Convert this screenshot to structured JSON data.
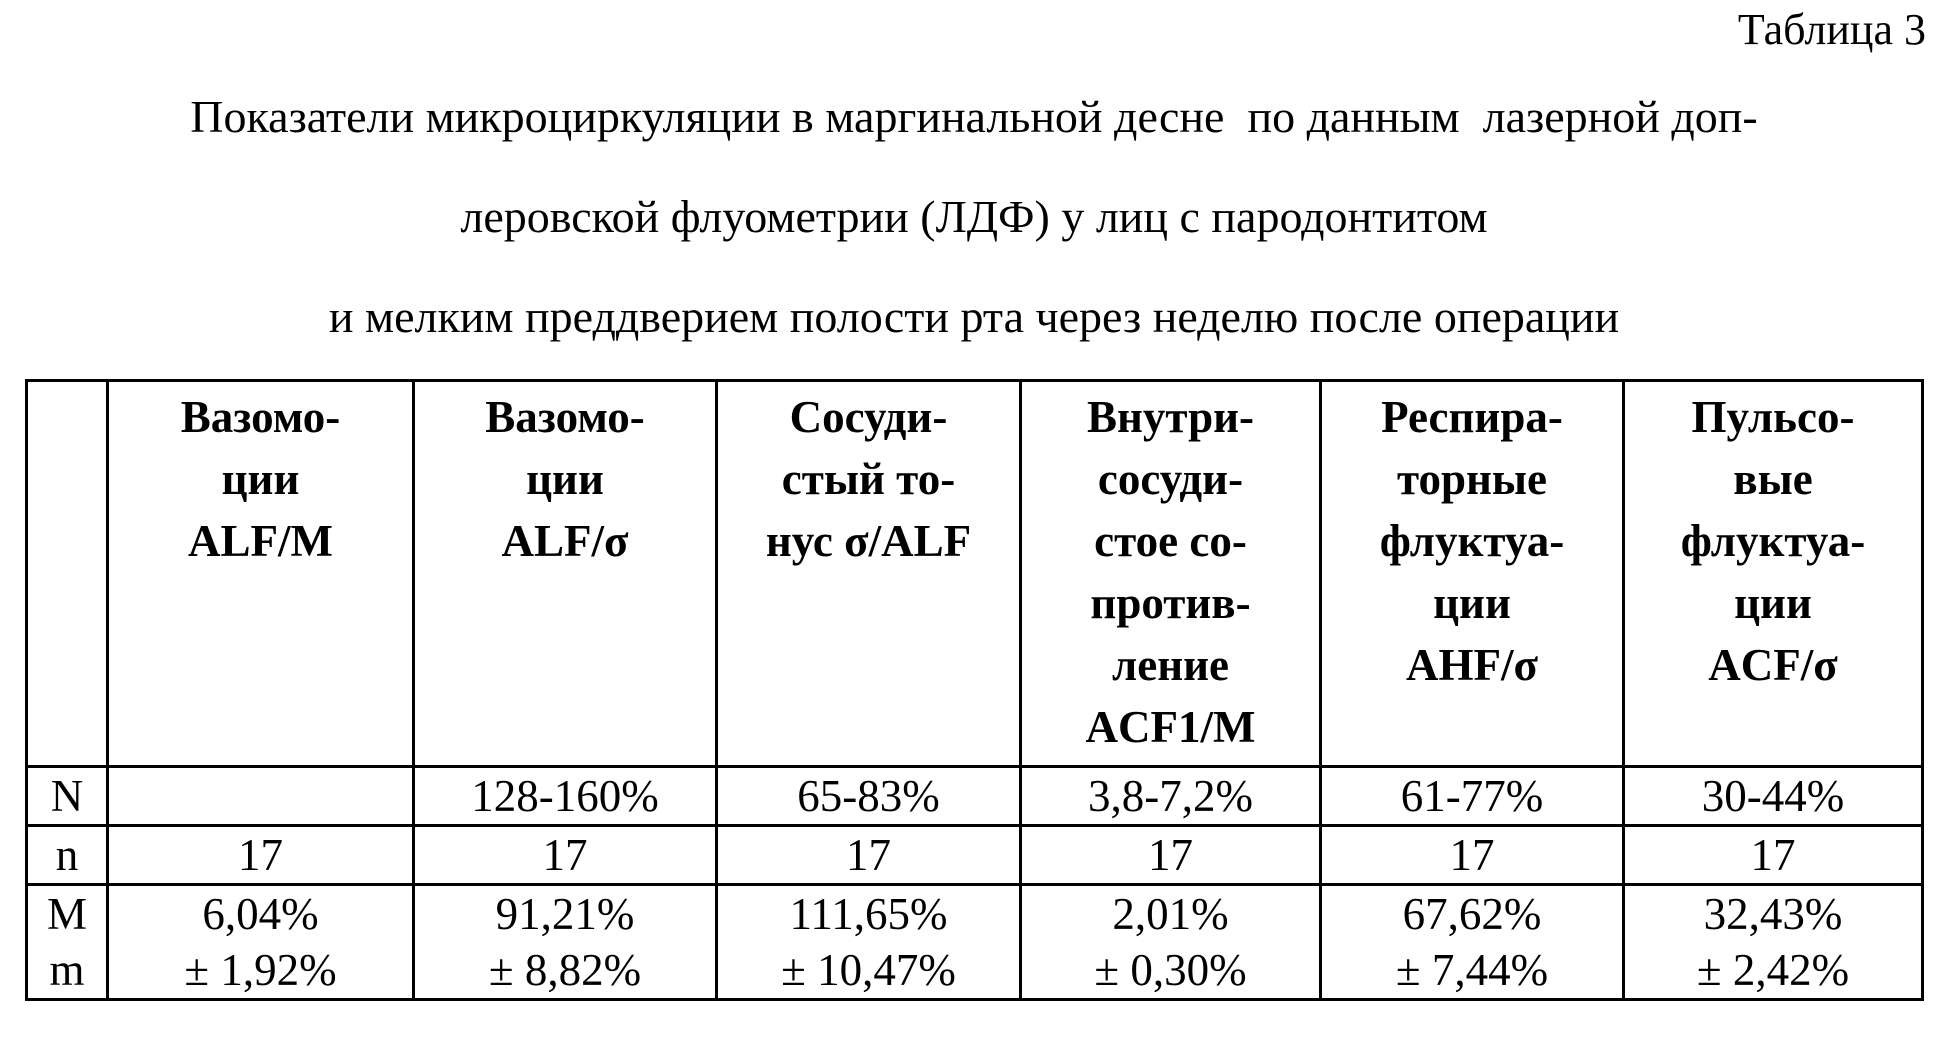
{
  "caption": "Таблица 3",
  "title": [
    "Показатели микроциркуляции в маргинальной десне  по данным  лазерной доп-",
    "леровской флуометрии (ЛДФ) у лиц с пародонтитом",
    "и мелким преддверием полости рта через неделю после операции"
  ],
  "table": {
    "columns": [
      [
        "Вазомо-",
        "ции",
        "ALF/M"
      ],
      [
        "Вазомо-",
        "ции",
        "ALF/σ"
      ],
      [
        "Сосуди-",
        "стый то-",
        "нус σ/ALF"
      ],
      [
        "Внутри-",
        "сосуди-",
        "стое со-",
        "против-",
        "ление",
        "ACF1/M"
      ],
      [
        "Респира-",
        "торные",
        "флуктуа-",
        "ции",
        "AHF/σ"
      ],
      [
        "Пульсо-",
        "вые",
        "флуктуа-",
        "ции",
        "ACF/σ"
      ]
    ],
    "rows": [
      {
        "label": "N",
        "values": [
          null,
          "128-160%",
          "65-83%",
          "3,8-7,2%",
          "61-77%",
          "30-44%"
        ]
      },
      {
        "label": "n",
        "values": [
          17,
          17,
          17,
          17,
          17,
          17
        ]
      },
      {
        "label": "M",
        "values": [
          "6,04%",
          "91,21%",
          "111,65%",
          "2,01%",
          "67,62%",
          "32,43%"
        ]
      },
      {
        "label": "m",
        "values": [
          "± 1,92%",
          "± 8,82%",
          "± 10,47%",
          "± 0,30%",
          "± 7,44%",
          "± 2,42%"
        ]
      }
    ]
  }
}
